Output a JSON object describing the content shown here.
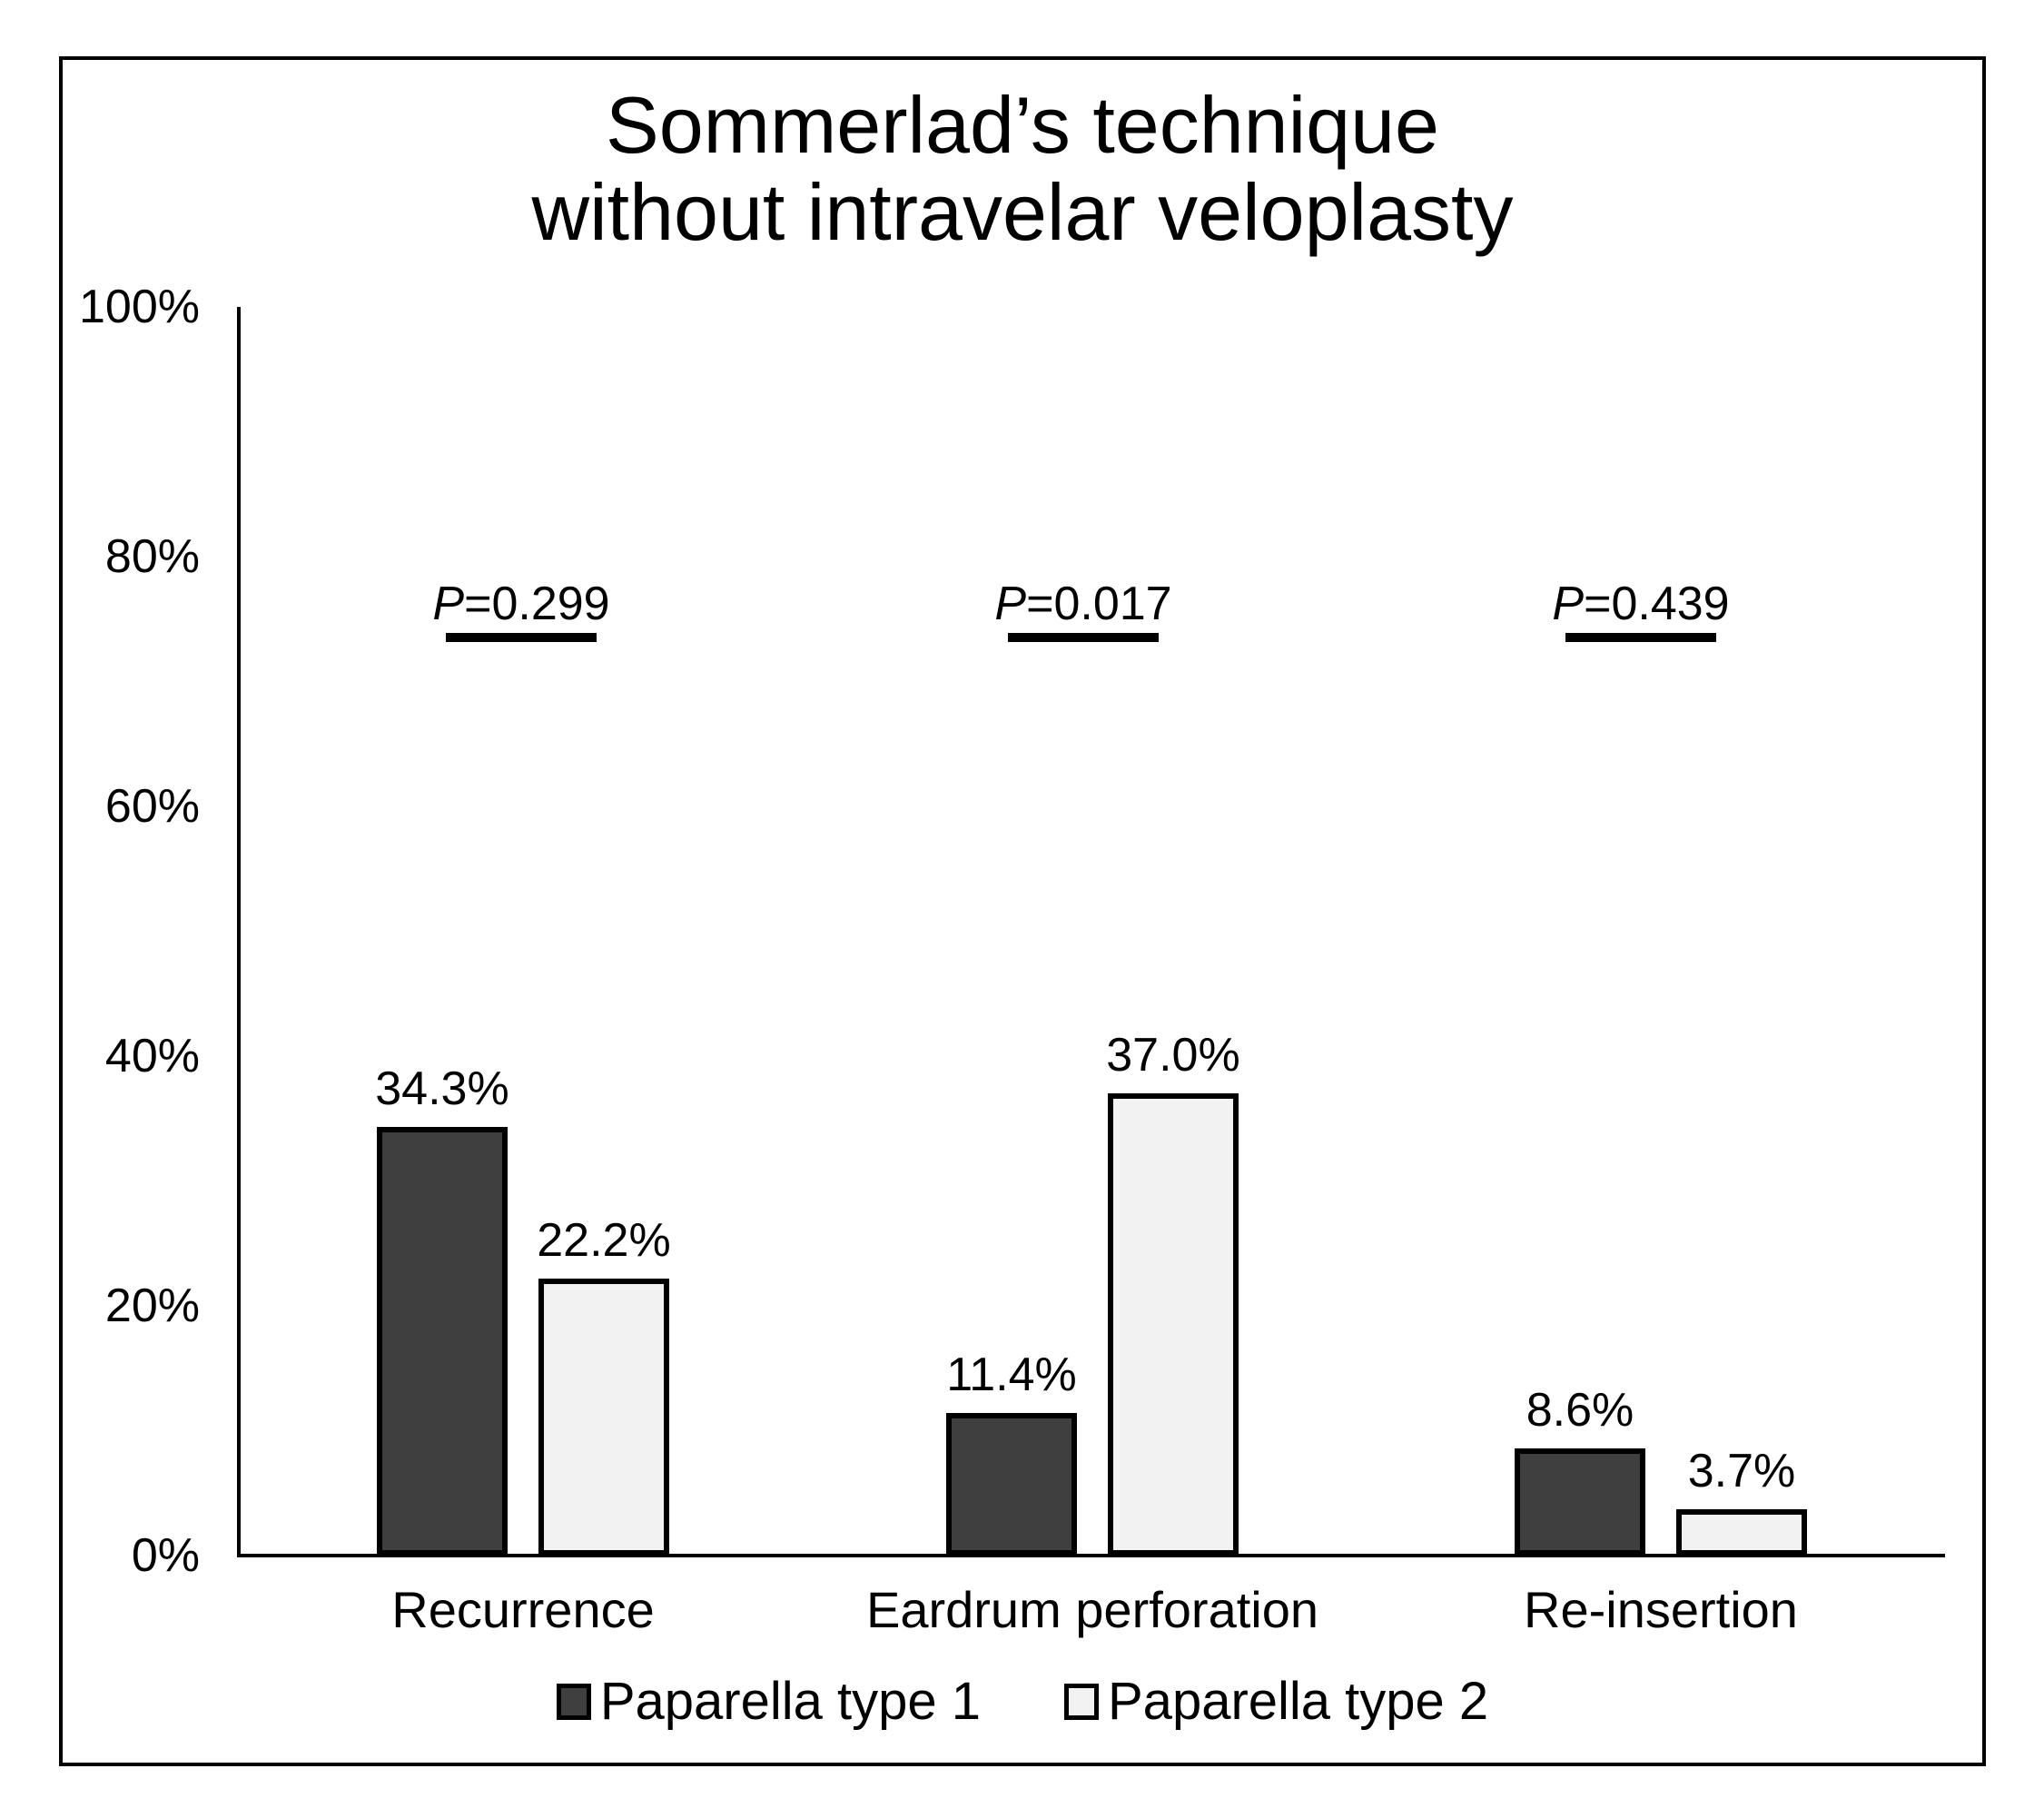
{
  "chart_data": {
    "type": "bar",
    "title": "Sommerlad's technique without intravelar veloplasty",
    "title_lines": [
      "Sommerlad’s technique",
      "without intravelar veloplasty"
    ],
    "categories": [
      "Recurrence",
      "Eardrum perforation",
      "Re-insertion"
    ],
    "series": [
      {
        "name": "Paparella type 1",
        "color": "#3f3f3f",
        "values": [
          34.3,
          11.4,
          8.6
        ]
      },
      {
        "name": "Paparella type 2",
        "color": "#f2f2f2",
        "values": [
          22.2,
          37.0,
          3.7
        ]
      }
    ],
    "value_labels": [
      [
        "34.3%",
        "11.4%",
        "8.6%"
      ],
      [
        "22.2%",
        "37.0%",
        "3.7%"
      ]
    ],
    "p_annotations": [
      {
        "p": "P",
        "value": "=0.299",
        "label": "P=0.299"
      },
      {
        "p": "P",
        "value": "=0.017",
        "label": "P=0.017"
      },
      {
        "p": "P",
        "value": "=0.439",
        "label": "P=0.439"
      }
    ],
    "y_axis": {
      "min": 0,
      "max": 100,
      "tick_labels": [
        "100%",
        "80%",
        "60%",
        "40%",
        "20%",
        "0%"
      ],
      "grid": false
    },
    "legend": {
      "position": "bottom",
      "entries": [
        "Paparella type 1",
        "Paparella type 2"
      ]
    },
    "colors": {
      "bar_border": "#000000",
      "axis": "#000000",
      "text": "#000000",
      "background": "#ffffff"
    }
  }
}
